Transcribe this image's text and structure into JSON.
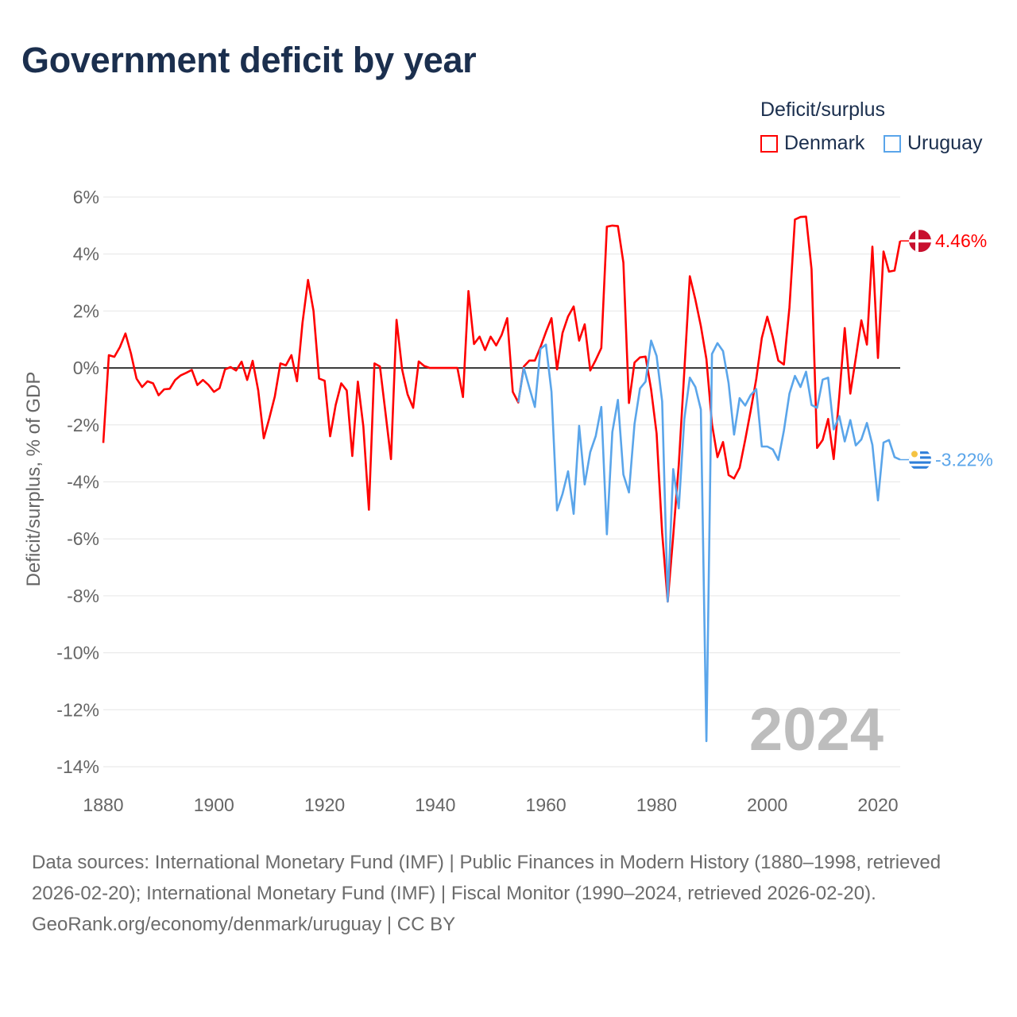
{
  "title": "Government deficit by year",
  "legend": {
    "title": "Deficit/surplus",
    "items": [
      {
        "name": "Denmark",
        "color": "#ff0000"
      },
      {
        "name": "Uruguay",
        "color": "#5aa5ea"
      }
    ]
  },
  "footer": {
    "sources": "Data sources: International Monetary Fund (IMF) | Public Finances in Modern History (1880–1998, retrieved 2026-02-20); International Monetary Fund (IMF) | Fiscal Monitor (1990–2024, retrieved 2026-02-20).",
    "link": "GeoRank.org/economy/denmark/uruguay | CC BY"
  },
  "chart_data": {
    "type": "line",
    "title": "Government deficit by year",
    "xlabel": "",
    "ylabel": "Deficit/surplus, % of GDP",
    "xlim": [
      1880,
      2024
    ],
    "ylim": [
      -14,
      6
    ],
    "x_ticks": [
      1880,
      1900,
      1920,
      1940,
      1960,
      1980,
      2000,
      2020
    ],
    "x_tick_labels": [
      "1880",
      "1900",
      "1920",
      "1940",
      "1960",
      "1980",
      "2000",
      "2020"
    ],
    "y_ticks": [
      6,
      4,
      2,
      0,
      -2,
      -4,
      -6,
      -8,
      -10,
      -12,
      -14
    ],
    "y_tick_labels": [
      "6%",
      "4%",
      "2%",
      "0%",
      "-2%",
      "-4%",
      "-6%",
      "-8%",
      "-10%",
      "-12%",
      "-14%"
    ],
    "grid": true,
    "legend_position": "top-right",
    "year_annotation": "2024",
    "series": [
      {
        "name": "Denmark",
        "color": "#ff0000",
        "start_year": 1880,
        "end_label": "4.46%",
        "values": [
          -2.63,
          0.45,
          0.39,
          0.73,
          1.21,
          0.51,
          -0.37,
          -0.67,
          -0.47,
          -0.54,
          -0.96,
          -0.75,
          -0.73,
          -0.42,
          -0.26,
          -0.17,
          -0.07,
          -0.6,
          -0.42,
          -0.59,
          -0.84,
          -0.71,
          -0.05,
          0.03,
          -0.09,
          0.22,
          -0.42,
          0.25,
          -0.79,
          -2.47,
          -1.77,
          -1.0,
          0.16,
          0.09,
          0.45,
          -0.47,
          1.58,
          3.09,
          2.0,
          -0.37,
          -0.45,
          -2.4,
          -1.3,
          -0.54,
          -0.79,
          -3.09,
          -0.48,
          -2.05,
          -4.98,
          0.16,
          0.05,
          -1.58,
          -3.2,
          1.69,
          -0.05,
          -0.93,
          -1.4,
          0.23,
          0.07,
          0,
          0,
          0,
          0,
          0,
          0,
          -1.02,
          2.7,
          0.84,
          1.1,
          0.63,
          1.1,
          0.79,
          1.16,
          1.75,
          -0.84,
          -1.21,
          0.05,
          0.26,
          0.26,
          0.73,
          1.26,
          1.75,
          -0.05,
          1.23,
          1.81,
          2.16,
          0.96,
          1.53,
          -0.09,
          0.28,
          0.7,
          4.96,
          5.0,
          4.98,
          3.7,
          -1.23,
          0.19,
          0.37,
          0.4,
          -0.76,
          -2.3,
          -5.8,
          -8.2,
          -5.9,
          -3.4,
          -0.1,
          3.22,
          2.4,
          1.47,
          0.31,
          -1.97,
          -3.13,
          -2.6,
          -3.76,
          -3.88,
          -3.5,
          -2.53,
          -1.5,
          -0.39,
          1.05,
          1.8,
          1.08,
          0.26,
          0.12,
          2.12,
          5.21,
          5.3,
          5.31,
          3.47,
          -2.81,
          -2.53,
          -1.79,
          -3.2,
          -1.0,
          1.4,
          -0.9,
          0.35,
          1.67,
          0.82,
          4.26,
          0.35,
          4.09,
          3.38,
          3.42,
          4.46
        ]
      },
      {
        "name": "Uruguay",
        "color": "#5aa5ea",
        "start_year": 1955,
        "end_label": "-3.22%",
        "values": [
          -1.21,
          0,
          -0.7,
          -1.37,
          0.67,
          0.82,
          -0.84,
          -5.0,
          -4.42,
          -3.63,
          -5.12,
          -2.03,
          -4.09,
          -2.95,
          -2.39,
          -1.37,
          -5.84,
          -2.25,
          -1.12,
          -3.74,
          -4.37,
          -1.97,
          -0.72,
          -0.48,
          0.96,
          0.42,
          -1.18,
          -8.2,
          -3.55,
          -4.93,
          -1.79,
          -0.34,
          -0.67,
          -1.46,
          -13.1,
          0.49,
          0.87,
          0.59,
          -0.53,
          -2.34,
          -1.06,
          -1.32,
          -0.95,
          -0.74,
          -2.76,
          -2.76,
          -2.86,
          -3.23,
          -2.2,
          -0.9,
          -0.28,
          -0.67,
          -0.13,
          -1.3,
          -1.4,
          -0.41,
          -0.34,
          -2.16,
          -1.69,
          -2.58,
          -1.83,
          -2.72,
          -2.51,
          -1.93,
          -2.7,
          -4.65,
          -2.62,
          -2.53,
          -3.13,
          -3.22
        ]
      }
    ]
  }
}
